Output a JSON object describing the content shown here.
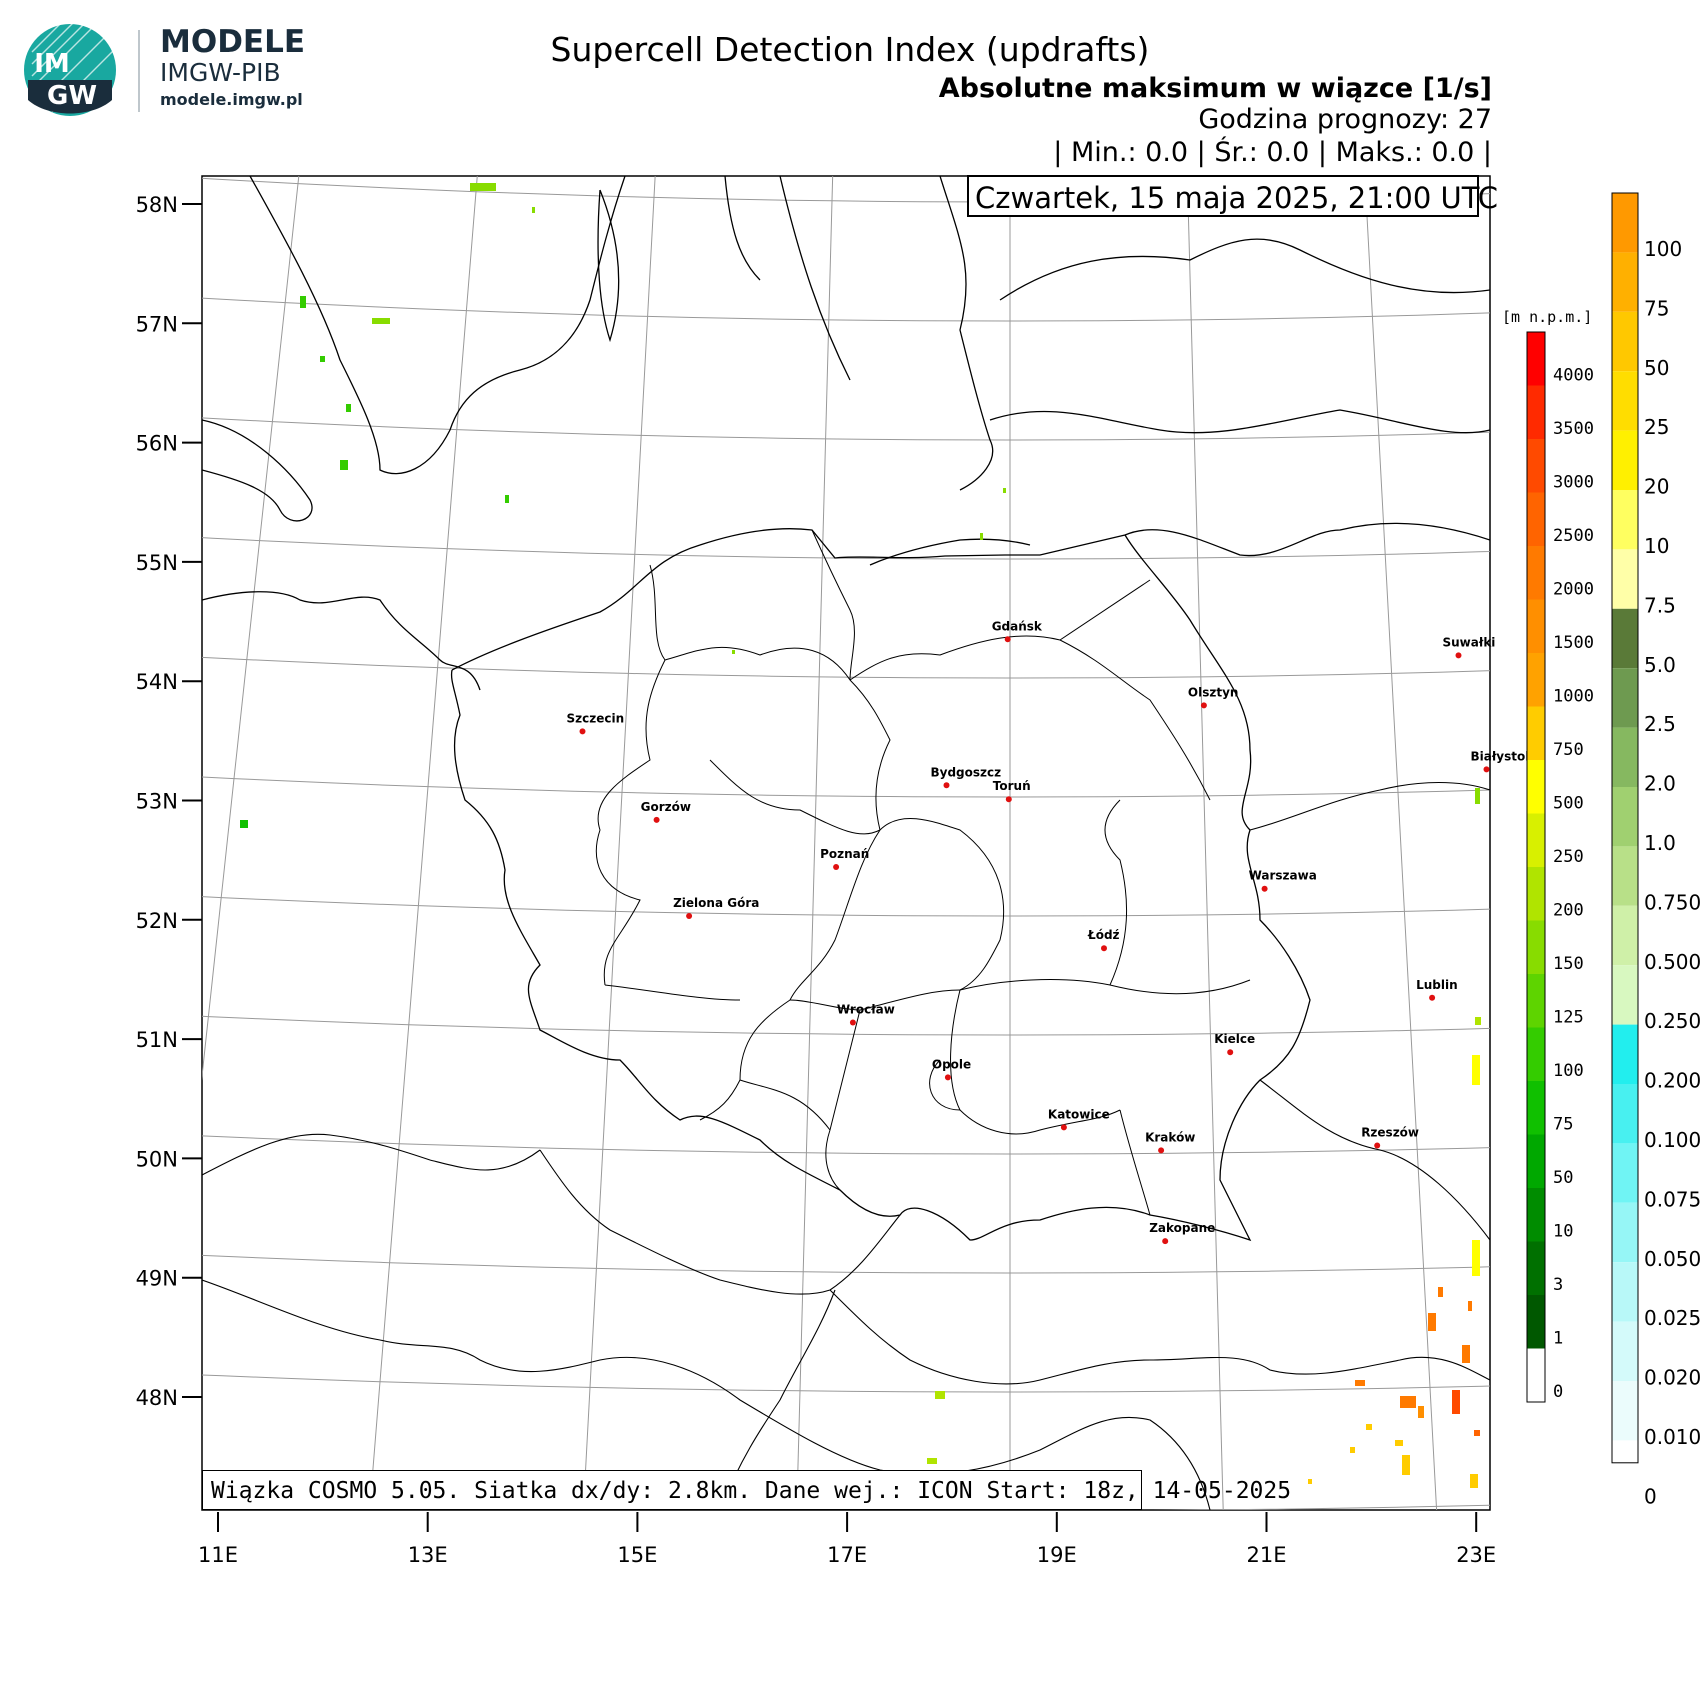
{
  "header": {
    "title": "Supercell Detection Index (updrafts)",
    "subtitle": "Absolutne maksimum w wiązce [1/s]",
    "forecast_hour": "Godzina prognozy: 27",
    "stats": "| Min.:      0.0 | Śr.:      0.0 | Maks.:      0.0 |",
    "valid_time": "Czwartek, 15 maja 2025, 21:00 UTC"
  },
  "footer": "Wiązka COSMO 5.05. Siatka dx/dy: 2.8km. Dane wej.: ICON Start: 18z, 14-05-2025",
  "logo": {
    "badge_top": "IM",
    "badge_bottom": "GW",
    "title": "MODELE",
    "org": "IMGW-PIB",
    "url": "modele.imgw.pl"
  },
  "colors": {
    "brand_teal": "#19a8a0",
    "brand_dark": "#1a2d3c",
    "border": "#000000",
    "grid": "#999999",
    "city_dot": "#e01010"
  },
  "map": {
    "lat_labels": [
      "58N",
      "57N",
      "56N",
      "55N",
      "54N",
      "53N",
      "52N",
      "51N",
      "50N",
      "49N",
      "48N"
    ],
    "lon_labels": [
      "11E",
      "13E",
      "15E",
      "17E",
      "19E",
      "21E",
      "23E"
    ],
    "cities": [
      {
        "name": "Gdańsk",
        "lon": 18.64,
        "lat": 54.35
      },
      {
        "name": "Suwałki",
        "lon": 22.93,
        "lat": 54.1
      },
      {
        "name": "Olsztyn",
        "lon": 20.49,
        "lat": 53.78
      },
      {
        "name": "Białystok",
        "lon": 23.16,
        "lat": 53.13
      },
      {
        "name": "Szczecin",
        "lon": 14.55,
        "lat": 53.43
      },
      {
        "name": "Bydgoszcz",
        "lon": 18.01,
        "lat": 53.12
      },
      {
        "name": "Toruń",
        "lon": 18.6,
        "lat": 53.01
      },
      {
        "name": "Gorzów",
        "lon": 15.23,
        "lat": 52.73
      },
      {
        "name": "Poznań",
        "lon": 16.93,
        "lat": 52.41
      },
      {
        "name": "Warszawa",
        "lon": 21.01,
        "lat": 52.23
      },
      {
        "name": "Zielona Góra",
        "lon": 15.51,
        "lat": 51.94
      },
      {
        "name": "Łódź",
        "lon": 19.46,
        "lat": 51.76
      },
      {
        "name": "Lublin",
        "lon": 22.57,
        "lat": 51.25
      },
      {
        "name": "Wrocław",
        "lon": 17.04,
        "lat": 51.11
      },
      {
        "name": "Kielce",
        "lon": 20.63,
        "lat": 50.87
      },
      {
        "name": "Opole",
        "lon": 17.93,
        "lat": 50.67
      },
      {
        "name": "Rzeszów",
        "lon": 22.0,
        "lat": 50.04
      },
      {
        "name": "Katowice",
        "lon": 19.02,
        "lat": 50.26
      },
      {
        "name": "Kraków",
        "lon": 19.94,
        "lat": 50.06
      },
      {
        "name": "Zakopane",
        "lon": 19.95,
        "lat": 49.3
      }
    ]
  },
  "elevation_legend": {
    "unit": "[m n.p.m.]",
    "labels": [
      "4000",
      "3500",
      "3000",
      "2500",
      "2000",
      "1500",
      "1000",
      "750",
      "500",
      "250",
      "200",
      "150",
      "125",
      "100",
      "75",
      "50",
      "10",
      "3",
      "1",
      "0"
    ],
    "colors": [
      "#ff0000",
      "#ff2a00",
      "#ff4a00",
      "#ff6400",
      "#ff7a00",
      "#ff8f00",
      "#ffa200",
      "#ffcc00",
      "#ffff00",
      "#d8f000",
      "#b0e400",
      "#88dc00",
      "#5ed400",
      "#34cc00",
      "#10c000",
      "#00a800",
      "#008c00",
      "#007000",
      "#005800",
      "#ffffff"
    ]
  },
  "value_legend": {
    "labels": [
      "100",
      "75",
      "50",
      "25",
      "20",
      "10",
      "7.5",
      "5.0",
      "2.5",
      "2.0",
      "1.0",
      "0.750",
      "0.500",
      "0.250",
      "0.200",
      "0.100",
      "0.075",
      "0.050",
      "0.025",
      "0.020",
      "0.010",
      "0"
    ],
    "colors": [
      "#ff9900",
      "#ffb000",
      "#ffc800",
      "#ffdd00",
      "#fff000",
      "#ffff60",
      "#ffffa8",
      "#5a7a38",
      "#6e9a50",
      "#86b860",
      "#a0d070",
      "#b8e088",
      "#cff0a8",
      "#d8f8c0",
      "#22eeee",
      "#48f0f0",
      "#70f4f4",
      "#96f6f6",
      "#b8f8f8",
      "#d4fafa",
      "#ebfcfc",
      "#ffffff"
    ]
  }
}
